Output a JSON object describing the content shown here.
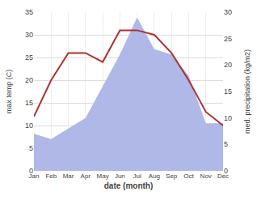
{
  "chart_data": {
    "type": "line",
    "categories": [
      "Jan",
      "Feb",
      "Mar",
      "Apr",
      "May",
      "Jun",
      "Jul",
      "Aug",
      "Sep",
      "Oct",
      "Nov",
      "Dec"
    ],
    "series": [
      {
        "type": "area",
        "color": "#b0b8e8",
        "values": [
          7,
          6,
          8,
          10,
          16,
          22,
          29,
          23,
          22,
          18,
          9,
          9
        ],
        "axis": "y2"
      },
      {
        "type": "line",
        "color": "#b03030",
        "values": [
          12,
          20,
          26,
          26,
          24,
          31,
          31,
          30,
          26,
          20,
          13,
          10
        ]
      }
    ],
    "xlabel": "date (month)",
    "ylabel": "max temp (C)",
    "y2label": "med. precipitation (kg/m2)",
    "ylim": [
      0,
      35
    ],
    "yticks": [
      0,
      5,
      10,
      15,
      20,
      25,
      30,
      35
    ],
    "y2lim": [
      0,
      30
    ],
    "y2ticks": [
      0,
      5,
      10,
      15,
      20,
      25,
      30
    ],
    "grid": true
  }
}
